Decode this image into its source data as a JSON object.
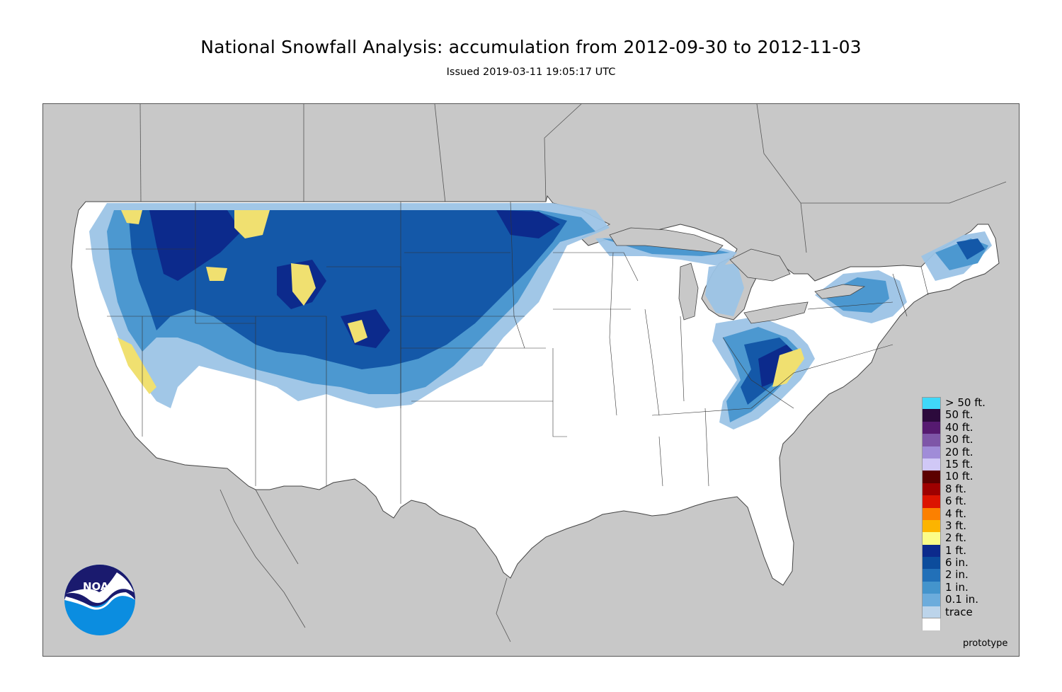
{
  "header": {
    "title": "National Snowfall Analysis: accumulation from 2012-09-30 to 2012-11-03",
    "subtitle": "Issued 2019-03-11 19:05:17 UTC"
  },
  "legend": {
    "items": [
      {
        "label": "> 50 ft.",
        "color": "#40d8f8"
      },
      {
        "label": "50 ft.",
        "color": "#2c0a3c"
      },
      {
        "label": "40 ft.",
        "color": "#561a70"
      },
      {
        "label": "30 ft.",
        "color": "#7e56a8"
      },
      {
        "label": "20 ft.",
        "color": "#a08cd8"
      },
      {
        "label": "15 ft.",
        "color": "#d0c8f6"
      },
      {
        "label": "10 ft.",
        "color": "#5c0000"
      },
      {
        "label": "8 ft.",
        "color": "#9e0000"
      },
      {
        "label": "6 ft.",
        "color": "#dc1400"
      },
      {
        "label": "4 ft.",
        "color": "#fc8000"
      },
      {
        "label": "3 ft.",
        "color": "#fcb400"
      },
      {
        "label": "2 ft.",
        "color": "#fcfc88"
      },
      {
        "label": "1 ft.",
        "color": "#0c2a8c"
      },
      {
        "label": "6 in.",
        "color": "#0c4c9c"
      },
      {
        "label": "2 in.",
        "color": "#2270b8"
      },
      {
        "label": "1 in.",
        "color": "#4494cc"
      },
      {
        "label": "0.1 in.",
        "color": "#6cacdc"
      },
      {
        "label": "trace",
        "color": "#bcd4ea"
      },
      {
        "label": "",
        "color": "#ffffff"
      }
    ]
  },
  "footer": {
    "note": "prototype"
  },
  "logo": {
    "text": "NOAA"
  },
  "colors": {
    "background_land_outside": "#c8c8c8",
    "water": "#c8c8c8",
    "no_snow": "#ffffff",
    "boundary": "#555555"
  }
}
